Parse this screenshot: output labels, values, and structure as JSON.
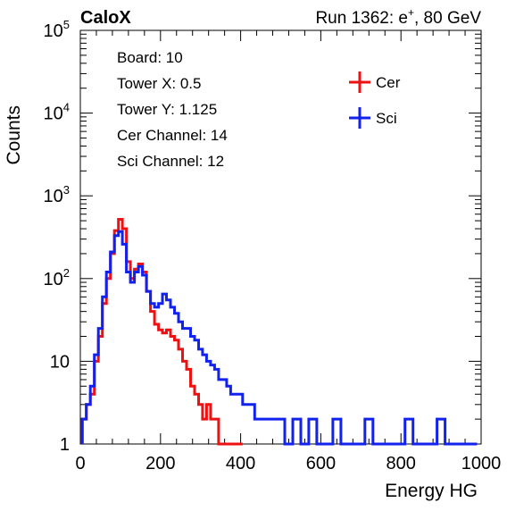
{
  "header": {
    "left_label": "CaloX",
    "right_label_prefix": "Run 1362: e",
    "right_label_sup": "+",
    "right_label_suffix": ", 80 GeV"
  },
  "info_box": {
    "lines": [
      "Board: 10",
      "Tower X: 0.5",
      "Tower Y: 1.125",
      "Cer Channel: 14",
      "Sci Channel: 12"
    ]
  },
  "chart_data": {
    "type": "line",
    "style": "step-histogram",
    "xlabel": "Energy HG",
    "ylabel": "Counts",
    "xlim": [
      0,
      1000
    ],
    "ylim": [
      1,
      100000
    ],
    "ylog": true,
    "grid": false,
    "legend_position": "top-right",
    "x_ticks": [
      "0",
      "200",
      "400",
      "600",
      "800",
      "1000"
    ],
    "y_ticks": [
      {
        "base": "1",
        "exp": ""
      },
      {
        "base": "10",
        "exp": ""
      },
      {
        "base": "10",
        "exp": "2"
      },
      {
        "base": "10",
        "exp": "3"
      },
      {
        "base": "10",
        "exp": "4"
      },
      {
        "base": "10",
        "exp": "5"
      }
    ],
    "series": [
      {
        "name": "Cer",
        "color": "#ee1111",
        "x": [
          10,
          20,
          30,
          40,
          50,
          60,
          70,
          80,
          90,
          100,
          110,
          120,
          130,
          140,
          150,
          160,
          170,
          180,
          190,
          200,
          210,
          220,
          230,
          240,
          250,
          260,
          270,
          280,
          290,
          300,
          310,
          320,
          330,
          340,
          350,
          360,
          370,
          380,
          390,
          400
        ],
        "values": [
          2,
          3,
          4,
          10,
          20,
          50,
          100,
          200,
          380,
          520,
          400,
          160,
          100,
          130,
          150,
          120,
          70,
          40,
          28,
          24,
          22,
          24,
          20,
          18,
          14,
          10,
          8,
          5,
          4,
          3,
          2,
          3,
          2,
          2,
          1,
          1,
          1,
          1,
          1,
          1
        ]
      },
      {
        "name": "Sci",
        "color": "#1122ee",
        "x": [
          10,
          20,
          30,
          40,
          50,
          60,
          70,
          80,
          90,
          100,
          110,
          120,
          130,
          140,
          150,
          160,
          170,
          180,
          190,
          200,
          210,
          220,
          230,
          240,
          250,
          260,
          270,
          280,
          290,
          300,
          310,
          320,
          330,
          340,
          350,
          360,
          370,
          380,
          390,
          400,
          410,
          420,
          430,
          440,
          450,
          460,
          470,
          480,
          490,
          500,
          520,
          540,
          560,
          580,
          600,
          620,
          640,
          660,
          680,
          700,
          720,
          740,
          760,
          780,
          800,
          820,
          840,
          860,
          880,
          900,
          920,
          940,
          960,
          980
        ],
        "values": [
          2,
          3,
          5,
          12,
          25,
          60,
          120,
          210,
          330,
          370,
          260,
          120,
          90,
          120,
          140,
          110,
          70,
          50,
          45,
          50,
          65,
          55,
          45,
          38,
          30,
          25,
          25,
          20,
          18,
          14,
          12,
          10,
          9,
          8,
          6,
          6,
          5,
          4,
          4,
          4,
          3,
          3,
          3,
          2,
          2,
          2,
          2,
          2,
          2,
          2,
          1,
          2,
          1,
          2,
          1,
          1,
          2,
          1,
          1,
          1,
          2,
          1,
          1,
          1,
          1,
          2,
          1,
          1,
          1,
          2,
          1,
          1,
          1,
          1
        ]
      }
    ]
  }
}
